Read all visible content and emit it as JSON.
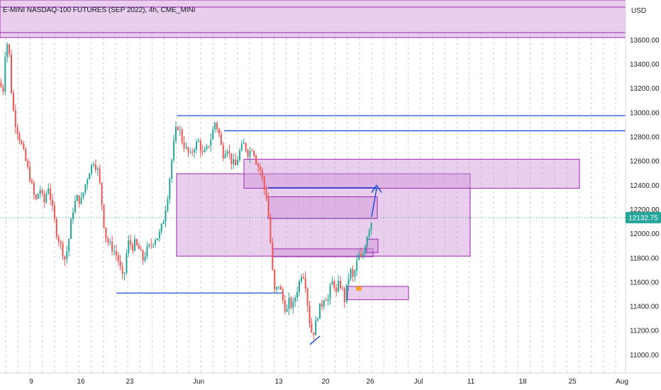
{
  "header": {
    "title": "E-MINI NASDAQ-100 FUTURES (SEP 2022), 4h, CME_MINI",
    "currency": "USD"
  },
  "colors": {
    "up": "#26a69a",
    "down": "#ef5350",
    "zone_fill": "#ce93d8",
    "zone_stroke": "#9c27b0",
    "level_line": "#1e4fd8",
    "price_badge": "#26a69a",
    "grid": "#c9ced6"
  },
  "chart_data": {
    "type": "candlestick",
    "x_tick_labels": [
      "9",
      "16",
      "23",
      "Jun",
      "13",
      "20",
      "26",
      "Jul",
      "11",
      "18",
      "25",
      "Aug"
    ],
    "y_tick_labels": [
      "11000.00",
      "11200.00",
      "11400.00",
      "11600.00",
      "11800.00",
      "12000.00",
      "12200.00",
      "12400.00",
      "12600.00",
      "12800.00",
      "13000.00",
      "13200.00",
      "13400.00",
      "13600.00"
    ],
    "last_price": "12132.75",
    "ylim": [
      10850,
      13930
    ],
    "close_path": [
      [
        0,
        13250
      ],
      [
        4,
        13150
      ],
      [
        8,
        13560
      ],
      [
        12,
        13580
      ],
      [
        16,
        13180
      ],
      [
        20,
        12950
      ],
      [
        26,
        12820
      ],
      [
        32,
        12700
      ],
      [
        38,
        12560
      ],
      [
        44,
        12420
      ],
      [
        50,
        12260
      ],
      [
        56,
        12380
      ],
      [
        62,
        12250
      ],
      [
        68,
        12400
      ],
      [
        74,
        12200
      ],
      [
        80,
        12000
      ],
      [
        86,
        11900
      ],
      [
        92,
        11780
      ],
      [
        97,
        11950
      ],
      [
        102,
        12180
      ],
      [
        108,
        12300
      ],
      [
        114,
        12260
      ],
      [
        120,
        12400
      ],
      [
        126,
        12520
      ],
      [
        132,
        12600
      ],
      [
        138,
        12520
      ],
      [
        142,
        12350
      ],
      [
        146,
        12100
      ],
      [
        150,
        11950
      ],
      [
        156,
        11900
      ],
      [
        162,
        11850
      ],
      [
        166,
        11800
      ],
      [
        170,
        11700
      ],
      [
        174,
        11600
      ],
      [
        178,
        11820
      ],
      [
        182,
        11950
      ],
      [
        186,
        11880
      ],
      [
        190,
        11920
      ],
      [
        196,
        11870
      ],
      [
        202,
        11780
      ],
      [
        206,
        11860
      ],
      [
        212,
        11900
      ],
      [
        218,
        11960
      ],
      [
        224,
        11980
      ],
      [
        230,
        12100
      ],
      [
        236,
        12300
      ],
      [
        240,
        12500
      ],
      [
        244,
        12700
      ],
      [
        248,
        12850
      ],
      [
        252,
        12900
      ],
      [
        256,
        12780
      ],
      [
        262,
        12700
      ],
      [
        268,
        12640
      ],
      [
        274,
        12720
      ],
      [
        280,
        12760
      ],
      [
        286,
        12650
      ],
      [
        292,
        12700
      ],
      [
        298,
        12800
      ],
      [
        303,
        12920
      ],
      [
        308,
        12850
      ],
      [
        314,
        12650
      ],
      [
        320,
        12720
      ],
      [
        326,
        12600
      ],
      [
        332,
        12560
      ],
      [
        338,
        12680
      ],
      [
        344,
        12740
      ],
      [
        350,
        12660
      ],
      [
        356,
        12720
      ],
      [
        362,
        12580
      ],
      [
        368,
        12520
      ],
      [
        372,
        12380
      ],
      [
        376,
        12300
      ],
      [
        380,
        12050
      ],
      [
        384,
        11700
      ],
      [
        388,
        11480
      ],
      [
        392,
        11600
      ],
      [
        396,
        11520
      ],
      [
        400,
        11420
      ],
      [
        404,
        11350
      ],
      [
        408,
        11450
      ],
      [
        412,
        11380
      ],
      [
        418,
        11520
      ],
      [
        422,
        11600
      ],
      [
        426,
        11700
      ],
      [
        430,
        11620
      ],
      [
        434,
        11400
      ],
      [
        438,
        11200
      ],
      [
        442,
        11180
      ],
      [
        446,
        11280
      ],
      [
        450,
        11380
      ],
      [
        454,
        11420
      ],
      [
        458,
        11500
      ],
      [
        462,
        11440
      ],
      [
        466,
        11560
      ],
      [
        470,
        11620
      ],
      [
        474,
        11500
      ],
      [
        478,
        11600
      ],
      [
        482,
        11550
      ],
      [
        486,
        11450
      ],
      [
        490,
        11600
      ],
      [
        494,
        11700
      ],
      [
        498,
        11620
      ],
      [
        502,
        11740
      ],
      [
        506,
        11820
      ],
      [
        510,
        11780
      ],
      [
        514,
        11900
      ],
      [
        518,
        12000
      ],
      [
        522,
        12080
      ],
      [
        526,
        12133
      ]
    ],
    "zones": [
      {
        "x1": 0,
        "x2": 882,
        "p1": 13930,
        "p2": 13620
      },
      {
        "x1": 249,
        "x2": 663,
        "p1": 12495,
        "p2": 11815
      },
      {
        "x1": 344,
        "x2": 817,
        "p1": 12615,
        "p2": 12375
      },
      {
        "x1": 378,
        "x2": 532,
        "p1": 12305,
        "p2": 12125
      },
      {
        "x1": 384,
        "x2": 526,
        "p1": 11875,
        "p2": 11810
      },
      {
        "x1": 517,
        "x2": 533,
        "p1": 11955,
        "p2": 11845
      },
      {
        "x1": 490,
        "x2": 576,
        "p1": 11565,
        "p2": 11455
      }
    ],
    "levels": [
      {
        "x1": 249,
        "x2": 882,
        "p": 12975
      },
      {
        "x1": 316,
        "x2": 882,
        "p": 12850
      },
      {
        "x1": 164,
        "x2": 398,
        "p": 11510
      },
      {
        "x1": 378,
        "x2": 530,
        "p": 12380
      }
    ],
    "trend_segments": [
      {
        "x1": 437,
        "x2": 451,
        "p1": 11085,
        "p2": 11155
      },
      {
        "x1": 524,
        "x2": 531,
        "p1": 12140,
        "p2": 12375
      },
      {
        "x1": 526,
        "x2": 535,
        "p1": 12375,
        "p2": 12375
      }
    ]
  }
}
